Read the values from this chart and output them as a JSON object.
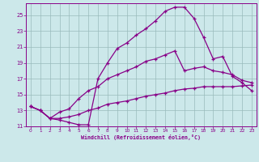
{
  "xlabel": "Windchill (Refroidissement éolien,°C)",
  "background_color": "#cce8ea",
  "line_color": "#880088",
  "grid_color": "#99bbbb",
  "xlim": [
    -0.5,
    23.5
  ],
  "ylim": [
    11,
    26.5
  ],
  "xticks": [
    0,
    1,
    2,
    3,
    4,
    5,
    6,
    7,
    8,
    9,
    10,
    11,
    12,
    13,
    14,
    15,
    16,
    17,
    18,
    19,
    20,
    21,
    22,
    23
  ],
  "yticks": [
    11,
    13,
    15,
    17,
    19,
    21,
    23,
    25
  ],
  "line1_x": [
    0,
    1,
    2,
    3,
    4,
    5,
    6,
    7,
    8,
    9,
    10,
    11,
    12,
    13,
    14,
    15,
    16,
    17,
    18,
    19,
    20,
    21,
    22,
    23
  ],
  "line1_y": [
    13.5,
    13.0,
    12.0,
    11.8,
    11.5,
    11.2,
    11.2,
    17.0,
    19.0,
    20.8,
    21.5,
    22.5,
    23.3,
    24.3,
    25.5,
    26.0,
    26.0,
    24.6,
    22.2,
    19.5,
    19.8,
    17.3,
    16.5,
    15.5
  ],
  "line2_x": [
    0,
    1,
    2,
    3,
    4,
    5,
    6,
    7,
    8,
    9,
    10,
    11,
    12,
    13,
    14,
    15,
    16,
    17,
    18,
    19,
    20,
    21,
    22,
    23
  ],
  "line2_y": [
    13.5,
    13.0,
    12.0,
    12.8,
    13.2,
    14.5,
    15.5,
    16.0,
    17.0,
    17.5,
    18.0,
    18.5,
    19.2,
    19.5,
    20.0,
    20.5,
    18.0,
    18.3,
    18.5,
    18.0,
    17.8,
    17.5,
    16.8,
    16.5
  ],
  "line3_x": [
    0,
    1,
    2,
    3,
    4,
    5,
    6,
    7,
    8,
    9,
    10,
    11,
    12,
    13,
    14,
    15,
    16,
    17,
    18,
    19,
    20,
    21,
    22,
    23
  ],
  "line3_y": [
    13.5,
    13.0,
    12.0,
    12.0,
    12.2,
    12.5,
    13.0,
    13.3,
    13.8,
    14.0,
    14.2,
    14.5,
    14.8,
    15.0,
    15.2,
    15.5,
    15.7,
    15.8,
    16.0,
    16.0,
    16.0,
    16.0,
    16.1,
    16.2
  ]
}
